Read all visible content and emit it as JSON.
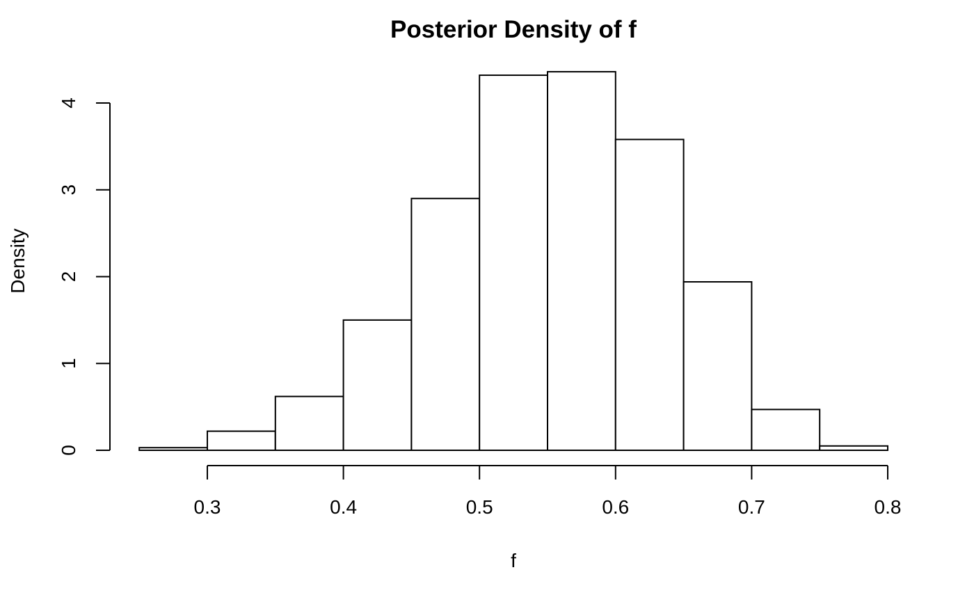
{
  "chart_data": {
    "type": "bar",
    "title": "Posterior Density of f",
    "xlabel": "f",
    "ylabel": "Density",
    "bins": [
      {
        "x0": 0.25,
        "x1": 0.3,
        "density": 0.03
      },
      {
        "x0": 0.3,
        "x1": 0.35,
        "density": 0.22
      },
      {
        "x0": 0.35,
        "x1": 0.4,
        "density": 0.62
      },
      {
        "x0": 0.4,
        "x1": 0.45,
        "density": 1.5
      },
      {
        "x0": 0.45,
        "x1": 0.5,
        "density": 2.9
      },
      {
        "x0": 0.5,
        "x1": 0.55,
        "density": 4.32
      },
      {
        "x0": 0.55,
        "x1": 0.6,
        "density": 4.36
      },
      {
        "x0": 0.6,
        "x1": 0.65,
        "density": 3.58
      },
      {
        "x0": 0.65,
        "x1": 0.7,
        "density": 1.94
      },
      {
        "x0": 0.7,
        "x1": 0.75,
        "density": 0.47
      },
      {
        "x0": 0.75,
        "x1": 0.8,
        "density": 0.05
      }
    ],
    "x_ticks": [
      "0.3",
      "0.4",
      "0.5",
      "0.6",
      "0.7",
      "0.8"
    ],
    "y_ticks": [
      "0",
      "1",
      "2",
      "3",
      "4"
    ],
    "xlim": [
      0.25,
      0.8
    ],
    "ylim": [
      0,
      4.4
    ],
    "grid": false,
    "legend": "none"
  }
}
